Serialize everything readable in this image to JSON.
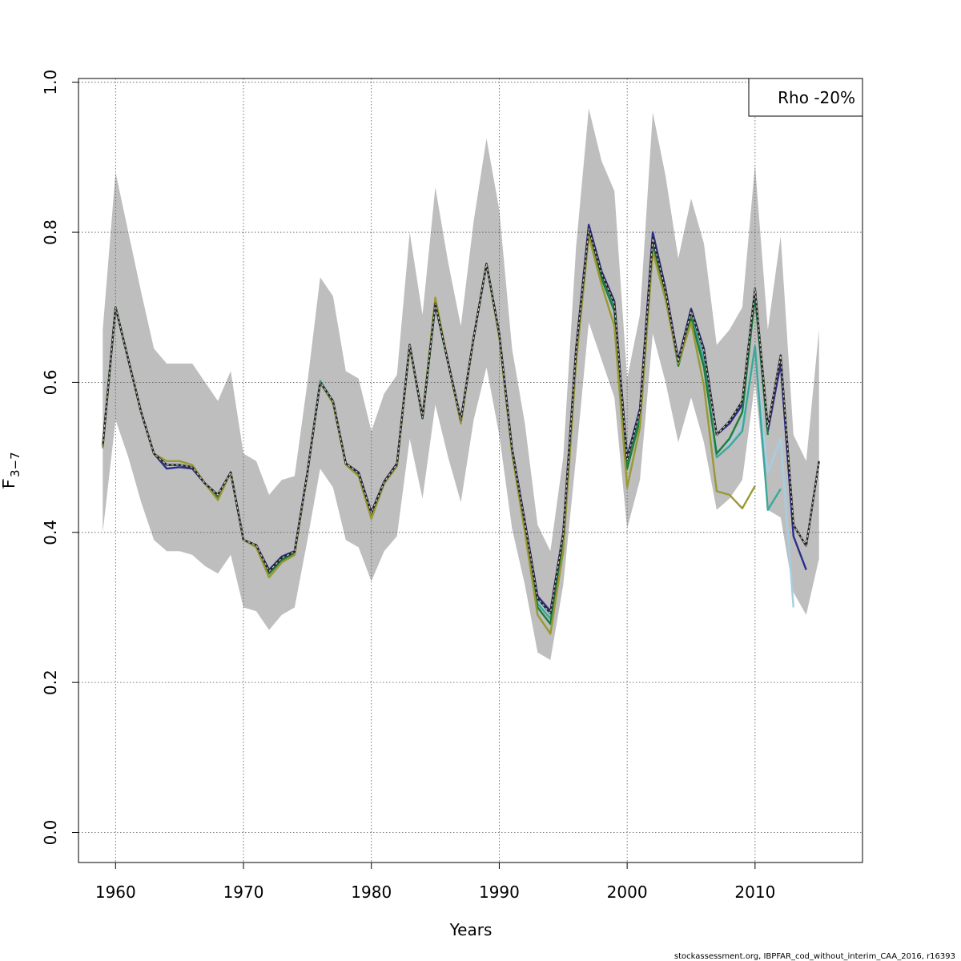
{
  "chart_data": {
    "type": "line",
    "xlabel": "Years",
    "ylabel": {
      "main": "F",
      "subscript": "3−7"
    },
    "xlim": [
      1957.1,
      2018.4
    ],
    "ylim": [
      -0.04,
      1.005
    ],
    "xticks": [
      1960,
      1970,
      1980,
      1990,
      2000,
      2010
    ],
    "yticks": [
      0.0,
      0.2,
      0.4,
      0.6,
      0.8,
      1.0
    ],
    "ytick_labels": [
      "0.0",
      "0.2",
      "0.4",
      "0.6",
      "0.8",
      "1.0"
    ],
    "grid": true,
    "legend": {
      "position": "top-right",
      "text": "Rho -20%"
    },
    "credit": "stockassessment.org, IBPFAR_cod_without_interim_CAA_2016, r16393",
    "band_color": "#bebebe",
    "band": {
      "x": [
        1959,
        1960,
        1961,
        1962,
        1963,
        1964,
        1965,
        1966,
        1967,
        1968,
        1969,
        1970,
        1971,
        1972,
        1973,
        1974,
        1975,
        1976,
        1977,
        1978,
        1979,
        1980,
        1981,
        1982,
        1983,
        1984,
        1985,
        1986,
        1987,
        1988,
        1989,
        1990,
        1991,
        1992,
        1993,
        1994,
        1995,
        1996,
        1997,
        1998,
        1999,
        2000,
        2001,
        2002,
        2003,
        2004,
        2005,
        2006,
        2007,
        2008,
        2009,
        2010,
        2011,
        2012,
        2013,
        2014,
        2015
      ],
      "lower": [
        0.4,
        0.55,
        0.5,
        0.44,
        0.39,
        0.375,
        0.375,
        0.37,
        0.355,
        0.345,
        0.37,
        0.3,
        0.295,
        0.27,
        0.29,
        0.3,
        0.39,
        0.485,
        0.46,
        0.39,
        0.38,
        0.335,
        0.375,
        0.395,
        0.525,
        0.445,
        0.57,
        0.5,
        0.44,
        0.55,
        0.62,
        0.53,
        0.405,
        0.33,
        0.24,
        0.23,
        0.33,
        0.5,
        0.68,
        0.63,
        0.58,
        0.405,
        0.47,
        0.665,
        0.6,
        0.52,
        0.58,
        0.52,
        0.43,
        0.445,
        0.47,
        0.6,
        0.43,
        0.42,
        0.32,
        0.29,
        0.365
      ],
      "upper": [
        0.67,
        0.88,
        0.8,
        0.72,
        0.645,
        0.625,
        0.625,
        0.625,
        0.6,
        0.575,
        0.615,
        0.505,
        0.495,
        0.45,
        0.47,
        0.475,
        0.6,
        0.74,
        0.715,
        0.615,
        0.605,
        0.535,
        0.585,
        0.61,
        0.8,
        0.69,
        0.86,
        0.76,
        0.675,
        0.815,
        0.925,
        0.83,
        0.645,
        0.545,
        0.41,
        0.375,
        0.5,
        0.78,
        0.965,
        0.895,
        0.855,
        0.605,
        0.69,
        0.96,
        0.875,
        0.765,
        0.845,
        0.785,
        0.65,
        0.67,
        0.7,
        0.89,
        0.67,
        0.795,
        0.53,
        0.495,
        0.67
      ]
    },
    "series": [
      {
        "color": "#a6cee3",
        "x": [
          1959,
          1960,
          1961,
          1962,
          1963,
          1964,
          1965,
          1966,
          1967,
          1968,
          1969,
          1970,
          1971,
          1972,
          1973,
          1974,
          1975,
          1976,
          1977,
          1978,
          1979,
          1980,
          1981,
          1982,
          1983,
          1984,
          1985,
          1986,
          1987,
          1988,
          1989,
          1990,
          1991,
          1992,
          1993,
          1994,
          1995,
          1996,
          1997,
          1998,
          1999,
          2000,
          2001,
          2002,
          2003,
          2004,
          2005,
          2006,
          2007,
          2008,
          2009,
          2010,
          2011,
          2012,
          2013
        ],
        "y": [
          0.515,
          0.7,
          0.63,
          0.56,
          0.505,
          0.49,
          0.49,
          0.487,
          0.465,
          0.45,
          0.48,
          0.39,
          0.382,
          0.347,
          0.365,
          0.372,
          0.48,
          0.6,
          0.575,
          0.492,
          0.478,
          0.425,
          0.467,
          0.49,
          0.65,
          0.553,
          0.705,
          0.626,
          0.55,
          0.66,
          0.758,
          0.665,
          0.51,
          0.41,
          0.31,
          0.29,
          0.395,
          0.64,
          0.805,
          0.745,
          0.705,
          0.495,
          0.56,
          0.785,
          0.72,
          0.625,
          0.69,
          0.64,
          0.508,
          0.52,
          0.545,
          0.645,
          0.48,
          0.525,
          0.3
        ]
      },
      {
        "color": "#2c2c8c",
        "x": [
          1959,
          1960,
          1961,
          1962,
          1963,
          1964,
          1965,
          1966,
          1967,
          1968,
          1969,
          1970,
          1971,
          1972,
          1973,
          1974,
          1975,
          1976,
          1977,
          1978,
          1979,
          1980,
          1981,
          1982,
          1983,
          1984,
          1985,
          1986,
          1987,
          1988,
          1989,
          1990,
          1991,
          1992,
          1993,
          1994,
          1995,
          1996,
          1997,
          1998,
          1999,
          2000,
          2001,
          2002,
          2003,
          2004,
          2005,
          2006,
          2007,
          2008,
          2009,
          2010,
          2011,
          2012,
          2013,
          2014
        ],
        "y": [
          0.515,
          0.7,
          0.63,
          0.56,
          0.505,
          0.485,
          0.487,
          0.485,
          0.465,
          0.45,
          0.48,
          0.39,
          0.383,
          0.35,
          0.368,
          0.375,
          0.48,
          0.6,
          0.575,
          0.492,
          0.48,
          0.427,
          0.468,
          0.492,
          0.65,
          0.553,
          0.705,
          0.627,
          0.55,
          0.66,
          0.758,
          0.665,
          0.512,
          0.415,
          0.315,
          0.295,
          0.4,
          0.645,
          0.81,
          0.748,
          0.708,
          0.5,
          0.565,
          0.8,
          0.725,
          0.63,
          0.698,
          0.645,
          0.53,
          0.545,
          0.57,
          0.72,
          0.535,
          0.625,
          0.395,
          0.35
        ]
      },
      {
        "color": "#3aa89a",
        "x": [
          1959,
          1960,
          1961,
          1962,
          1963,
          1964,
          1965,
          1966,
          1967,
          1968,
          1969,
          1970,
          1971,
          1972,
          1973,
          1974,
          1975,
          1976,
          1977,
          1978,
          1979,
          1980,
          1981,
          1982,
          1983,
          1984,
          1985,
          1986,
          1987,
          1988,
          1989,
          1990,
          1991,
          1992,
          1993,
          1994,
          1995,
          1996,
          1997,
          1998,
          1999,
          2000,
          2001,
          2002,
          2003,
          2004,
          2005,
          2006,
          2007,
          2008,
          2009,
          2010,
          2011,
          2012
        ],
        "y": [
          0.515,
          0.7,
          0.63,
          0.56,
          0.505,
          0.49,
          0.49,
          0.487,
          0.465,
          0.448,
          0.48,
          0.39,
          0.382,
          0.346,
          0.364,
          0.373,
          0.48,
          0.602,
          0.575,
          0.492,
          0.478,
          0.424,
          0.467,
          0.49,
          0.65,
          0.552,
          0.703,
          0.626,
          0.548,
          0.66,
          0.758,
          0.664,
          0.51,
          0.41,
          0.305,
          0.285,
          0.39,
          0.635,
          0.8,
          0.74,
          0.7,
          0.49,
          0.555,
          0.785,
          0.718,
          0.625,
          0.688,
          0.63,
          0.5,
          0.515,
          0.535,
          0.648,
          0.43,
          0.458
        ]
      },
      {
        "color": "#1b7e3a",
        "x": [
          1959,
          1960,
          1961,
          1962,
          1963,
          1964,
          1965,
          1966,
          1967,
          1968,
          1969,
          1970,
          1971,
          1972,
          1973,
          1974,
          1975,
          1976,
          1977,
          1978,
          1979,
          1980,
          1981,
          1982,
          1983,
          1984,
          1985,
          1986,
          1987,
          1988,
          1989,
          1990,
          1991,
          1992,
          1993,
          1994,
          1995,
          1996,
          1997,
          1998,
          1999,
          2000,
          2001,
          2002,
          2003,
          2004,
          2005,
          2006,
          2007,
          2008,
          2009,
          2010,
          2011
        ],
        "y": [
          0.515,
          0.7,
          0.63,
          0.56,
          0.505,
          0.49,
          0.49,
          0.487,
          0.465,
          0.447,
          0.48,
          0.39,
          0.382,
          0.345,
          0.363,
          0.372,
          0.48,
          0.6,
          0.575,
          0.492,
          0.477,
          0.423,
          0.466,
          0.49,
          0.65,
          0.552,
          0.704,
          0.626,
          0.548,
          0.66,
          0.758,
          0.664,
          0.508,
          0.405,
          0.3,
          0.278,
          0.385,
          0.63,
          0.8,
          0.738,
          0.695,
          0.485,
          0.55,
          0.78,
          0.715,
          0.622,
          0.685,
          0.62,
          0.505,
          0.525,
          0.56,
          0.715,
          0.53
        ]
      },
      {
        "color": "#999933",
        "x": [
          1959,
          1960,
          1961,
          1962,
          1963,
          1964,
          1965,
          1966,
          1967,
          1968,
          1969,
          1970,
          1971,
          1972,
          1973,
          1974,
          1975,
          1976,
          1977,
          1978,
          1979,
          1980,
          1981,
          1982,
          1983,
          1984,
          1985,
          1986,
          1987,
          1988,
          1989,
          1990,
          1991,
          1992,
          1993,
          1994,
          1995,
          1996,
          1997,
          1998,
          1999,
          2000,
          2001,
          2002,
          2003,
          2004,
          2005,
          2006,
          2007,
          2008,
          2009,
          2010
        ],
        "y": [
          0.512,
          0.7,
          0.63,
          0.56,
          0.505,
          0.495,
          0.495,
          0.49,
          0.465,
          0.443,
          0.48,
          0.39,
          0.38,
          0.34,
          0.36,
          0.37,
          0.48,
          0.6,
          0.572,
          0.49,
          0.475,
          0.418,
          0.465,
          0.488,
          0.648,
          0.555,
          0.713,
          0.626,
          0.545,
          0.66,
          0.758,
          0.66,
          0.505,
          0.4,
          0.29,
          0.265,
          0.375,
          0.625,
          0.795,
          0.73,
          0.675,
          0.46,
          0.54,
          0.775,
          0.71,
          0.625,
          0.68,
          0.595,
          0.455,
          0.45,
          0.432,
          0.462
        ]
      },
      {
        "color": "#222222",
        "dashed": true,
        "x": [
          1959,
          1960,
          1961,
          1962,
          1963,
          1964,
          1965,
          1966,
          1967,
          1968,
          1969,
          1970,
          1971,
          1972,
          1973,
          1974,
          1975,
          1976,
          1977,
          1978,
          1979,
          1980,
          1981,
          1982,
          1983,
          1984,
          1985,
          1986,
          1987,
          1988,
          1989,
          1990,
          1991,
          1992,
          1993,
          1994,
          1995,
          1996,
          1997,
          1998,
          1999,
          2000,
          2001,
          2002,
          2003,
          2004,
          2005,
          2006,
          2007,
          2008,
          2009,
          2010,
          2011,
          2012,
          2013,
          2014,
          2015
        ],
        "y": [
          0.515,
          0.7,
          0.63,
          0.56,
          0.505,
          0.49,
          0.49,
          0.487,
          0.465,
          0.45,
          0.48,
          0.39,
          0.383,
          0.348,
          0.366,
          0.374,
          0.48,
          0.6,
          0.575,
          0.492,
          0.479,
          0.426,
          0.467,
          0.491,
          0.65,
          0.553,
          0.705,
          0.626,
          0.55,
          0.66,
          0.758,
          0.665,
          0.511,
          0.413,
          0.312,
          0.292,
          0.398,
          0.642,
          0.805,
          0.745,
          0.705,
          0.497,
          0.562,
          0.792,
          0.722,
          0.628,
          0.695,
          0.642,
          0.53,
          0.548,
          0.575,
          0.725,
          0.54,
          0.636,
          0.41,
          0.382,
          0.495
        ]
      }
    ]
  }
}
